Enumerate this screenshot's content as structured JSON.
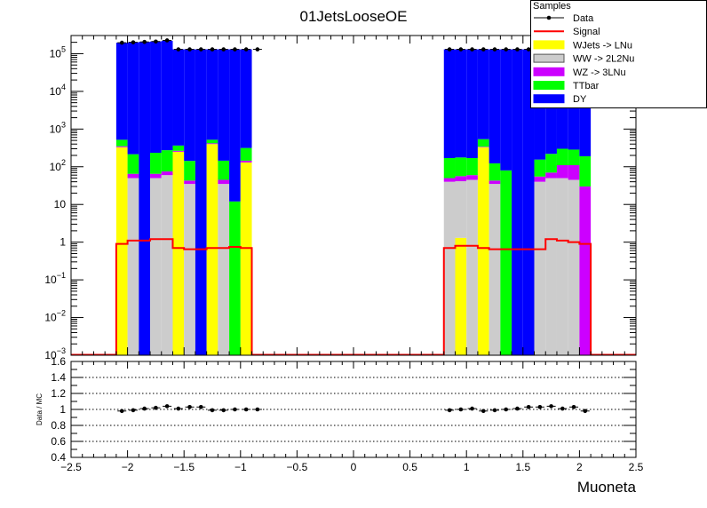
{
  "chart_data": {
    "type": "bar",
    "title": "01JetsLooseOE",
    "xlabel": "Muoneta",
    "ylabel": "",
    "xlim": [
      -2.5,
      2.5
    ],
    "ylim": [
      0.001,
      200000
    ],
    "yscale": "log",
    "bin_edges": [
      -2.5,
      -2.4,
      -2.3,
      -2.2,
      -2.1,
      -2.0,
      -1.9,
      -1.8,
      -1.7,
      -1.6,
      -1.5,
      -1.4,
      -1.3,
      -1.2,
      -1.1,
      -1.0,
      -0.9,
      -0.8,
      -0.7,
      -0.6,
      -0.5,
      -0.4,
      -0.3,
      -0.2,
      -0.1,
      0.0,
      0.1,
      0.2,
      0.3,
      0.4,
      0.5,
      0.6,
      0.7,
      0.8,
      0.9,
      1.0,
      1.1,
      1.2,
      1.3,
      1.4,
      1.5,
      1.6,
      1.7,
      1.8,
      1.9,
      2.0,
      2.1,
      2.2,
      2.3,
      2.4,
      2.5
    ],
    "x_ticks": [
      "−2.5",
      "−2",
      "−1.5",
      "−1",
      "−0.5",
      "0",
      "0.5",
      "1",
      "1.5",
      "2",
      "2.5"
    ],
    "y_ticks": [
      "10^-3",
      "10^-2",
      "10^-1",
      "1",
      "10",
      "10^2",
      "10^3",
      "10^4",
      "10^5"
    ],
    "legend": {
      "title": "Samples",
      "placement": "top-right",
      "entries": [
        {
          "label": "Data",
          "color": "#000000",
          "style": "marker"
        },
        {
          "label": "Signal",
          "color": "#ff0000",
          "style": "line"
        },
        {
          "label": "WJets -> LNu",
          "color": "#ffff00",
          "style": "fill"
        },
        {
          "label": "WW -> 2L2Nu",
          "color": "#cccccc",
          "style": "fill"
        },
        {
          "label": "WZ -> 3LNu",
          "color": "#cc00ff",
          "style": "fill"
        },
        {
          "label": "TTbar",
          "color": "#00ff00",
          "style": "fill"
        },
        {
          "label": "DY",
          "color": "#0000ff",
          "style": "fill"
        }
      ]
    },
    "series": [
      {
        "name": "WJets -> LNu",
        "color": "#ffff00",
        "values": [
          0,
          0,
          0,
          0,
          330,
          0,
          0,
          0,
          0,
          250,
          0,
          0,
          400,
          0,
          0,
          130,
          0,
          0,
          0,
          0,
          0,
          0,
          0,
          0,
          0,
          0,
          0,
          0,
          0,
          0,
          0,
          0,
          0,
          0,
          1.3,
          0,
          330,
          0,
          0,
          0,
          0,
          0,
          0,
          0,
          0,
          0,
          0,
          0,
          0,
          0
        ]
      },
      {
        "name": "WW -> 2L2Nu",
        "color": "#cccccc",
        "values": [
          0,
          0,
          0,
          0,
          0,
          50,
          0,
          50,
          60,
          0,
          35,
          0,
          0,
          35,
          0,
          0,
          0,
          0,
          0,
          0,
          0,
          0,
          0,
          0,
          0,
          0,
          0,
          0,
          0,
          0,
          0,
          0,
          0,
          40,
          40,
          45,
          0,
          35,
          0,
          0,
          0,
          40,
          50,
          50,
          45,
          0,
          0,
          0,
          0,
          0
        ]
      },
      {
        "name": "WZ -> 3LNu",
        "color": "#cc00ff",
        "values": [
          0,
          0,
          0,
          0,
          20,
          15,
          0,
          15,
          15,
          15,
          8,
          0,
          20,
          10,
          0,
          15,
          0,
          0,
          0,
          0,
          0,
          0,
          0,
          0,
          0,
          0,
          0,
          0,
          0,
          0,
          0,
          0,
          0,
          10,
          15,
          15,
          10,
          8,
          0,
          0,
          0,
          15,
          20,
          60,
          65,
          30,
          0,
          0,
          0,
          0
        ]
      },
      {
        "name": "TTbar",
        "color": "#00ff00",
        "values": [
          0,
          0,
          0,
          0,
          170,
          150,
          0,
          170,
          200,
          100,
          100,
          0,
          100,
          100,
          12,
          170,
          0,
          0,
          0,
          0,
          0,
          0,
          0,
          0,
          0,
          0,
          0,
          0,
          0,
          0,
          0,
          0,
          0,
          120,
          120,
          110,
          200,
          80,
          80,
          0,
          0,
          100,
          150,
          190,
          175,
          160,
          0,
          0,
          0,
          0
        ]
      },
      {
        "name": "DY",
        "color": "#0000ff",
        "values": [
          0,
          0,
          0,
          0,
          195000,
          200000,
          205000,
          210000,
          220000,
          130000,
          130000,
          130000,
          130000,
          130000,
          130000,
          130000,
          0,
          0,
          0,
          0,
          0,
          0,
          0,
          0,
          0,
          0,
          0,
          0,
          0,
          0,
          0,
          0,
          0,
          130000,
          130000,
          130000,
          130000,
          130000,
          130000,
          130000,
          130000,
          130000,
          130000,
          130000,
          130000,
          130000,
          0,
          0,
          0,
          0
        ]
      },
      {
        "name": "Signal",
        "color": "#ff0000",
        "values": [
          0,
          0,
          0,
          0,
          0.9,
          1.1,
          1.1,
          1.2,
          1.2,
          0.7,
          0.65,
          0.65,
          0.7,
          0.7,
          0.75,
          0.7,
          0,
          0,
          0,
          0,
          0,
          0,
          0,
          0,
          0,
          0,
          0,
          0,
          0,
          0,
          0,
          0,
          0,
          0.7,
          0.8,
          0.8,
          0.7,
          0.65,
          0.65,
          0.65,
          0.65,
          0.65,
          1.2,
          1.1,
          1.0,
          0.9,
          0,
          0,
          0,
          0
        ]
      }
    ],
    "data": {
      "name": "Data",
      "x": [
        -2.05,
        -1.95,
        -1.85,
        -1.75,
        -1.65,
        -1.55,
        -1.45,
        -1.35,
        -1.25,
        -1.15,
        -1.05,
        -0.95,
        -0.85,
        0.85,
        0.95,
        1.05,
        1.15,
        1.25,
        1.35,
        1.45,
        1.55,
        1.65,
        1.75,
        1.85,
        1.95,
        2.05
      ],
      "y": [
        195000,
        200000,
        205000,
        210000,
        225000,
        130000,
        130000,
        130000,
        130000,
        130000,
        130000,
        130000,
        130000,
        130000,
        130000,
        130000,
        130000,
        130000,
        130000,
        130000,
        130000,
        130000,
        130000,
        130000,
        130000,
        130000
      ]
    },
    "ratio": {
      "ylabel": "Data / MC",
      "ylim": [
        0.4,
        1.6
      ],
      "y_ticks": [
        "0.4",
        "0.6",
        "0.8",
        "1",
        "1.2",
        "1.4",
        "1.6"
      ],
      "gridlines": [
        0.6,
        0.8,
        1.0,
        1.2,
        1.4
      ],
      "x": [
        -2.05,
        -1.95,
        -1.85,
        -1.75,
        -1.65,
        -1.55,
        -1.45,
        -1.35,
        -1.25,
        -1.15,
        -1.05,
        -0.95,
        -0.85,
        0.85,
        0.95,
        1.05,
        1.15,
        1.25,
        1.35,
        1.45,
        1.55,
        1.65,
        1.75,
        1.85,
        1.95,
        2.05
      ],
      "y": [
        0.98,
        0.99,
        1.01,
        1.02,
        1.04,
        1.01,
        1.03,
        1.03,
        0.99,
        0.99,
        1.0,
        1.0,
        1.0,
        0.99,
        1.0,
        1.01,
        0.98,
        0.99,
        1.0,
        1.01,
        1.03,
        1.03,
        1.04,
        1.01,
        1.03,
        0.98
      ]
    }
  }
}
